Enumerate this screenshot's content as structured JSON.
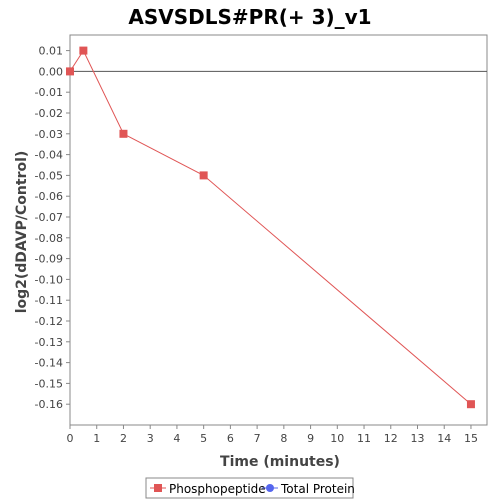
{
  "chart_data": {
    "type": "line",
    "title": "ASVSDLS#PR(+ 3)_v1",
    "xlabel": "Time (minutes)",
    "ylabel": "log2(dDAVP/Control)",
    "x_ticks": [
      "0",
      "1",
      "2",
      "3",
      "4",
      "5",
      "6",
      "7",
      "8",
      "9",
      "10",
      "11",
      "12",
      "13",
      "14",
      "15"
    ],
    "y_ticks": [
      "0.01",
      "0.00",
      "-0.01",
      "-0.02",
      "-0.03",
      "-0.04",
      "-0.05",
      "-0.06",
      "-0.07",
      "-0.08",
      "-0.09",
      "-0.10",
      "-0.11",
      "-0.12",
      "-0.13",
      "-0.14",
      "-0.15",
      "-0.16"
    ],
    "xlim": [
      0,
      15.6
    ],
    "ylim": [
      -0.17,
      0.0175
    ],
    "grid": false,
    "legend_position": "bottom",
    "series": [
      {
        "name": "Phosphopeptide",
        "color": "#e05555",
        "marker": "square",
        "x": [
          0,
          0.5,
          2,
          5,
          15
        ],
        "y": [
          0.0,
          0.01,
          -0.03,
          -0.05,
          -0.16
        ]
      },
      {
        "name": "Total Protein",
        "color": "#5566ee",
        "marker": "circle",
        "x": [],
        "y": []
      }
    ]
  }
}
